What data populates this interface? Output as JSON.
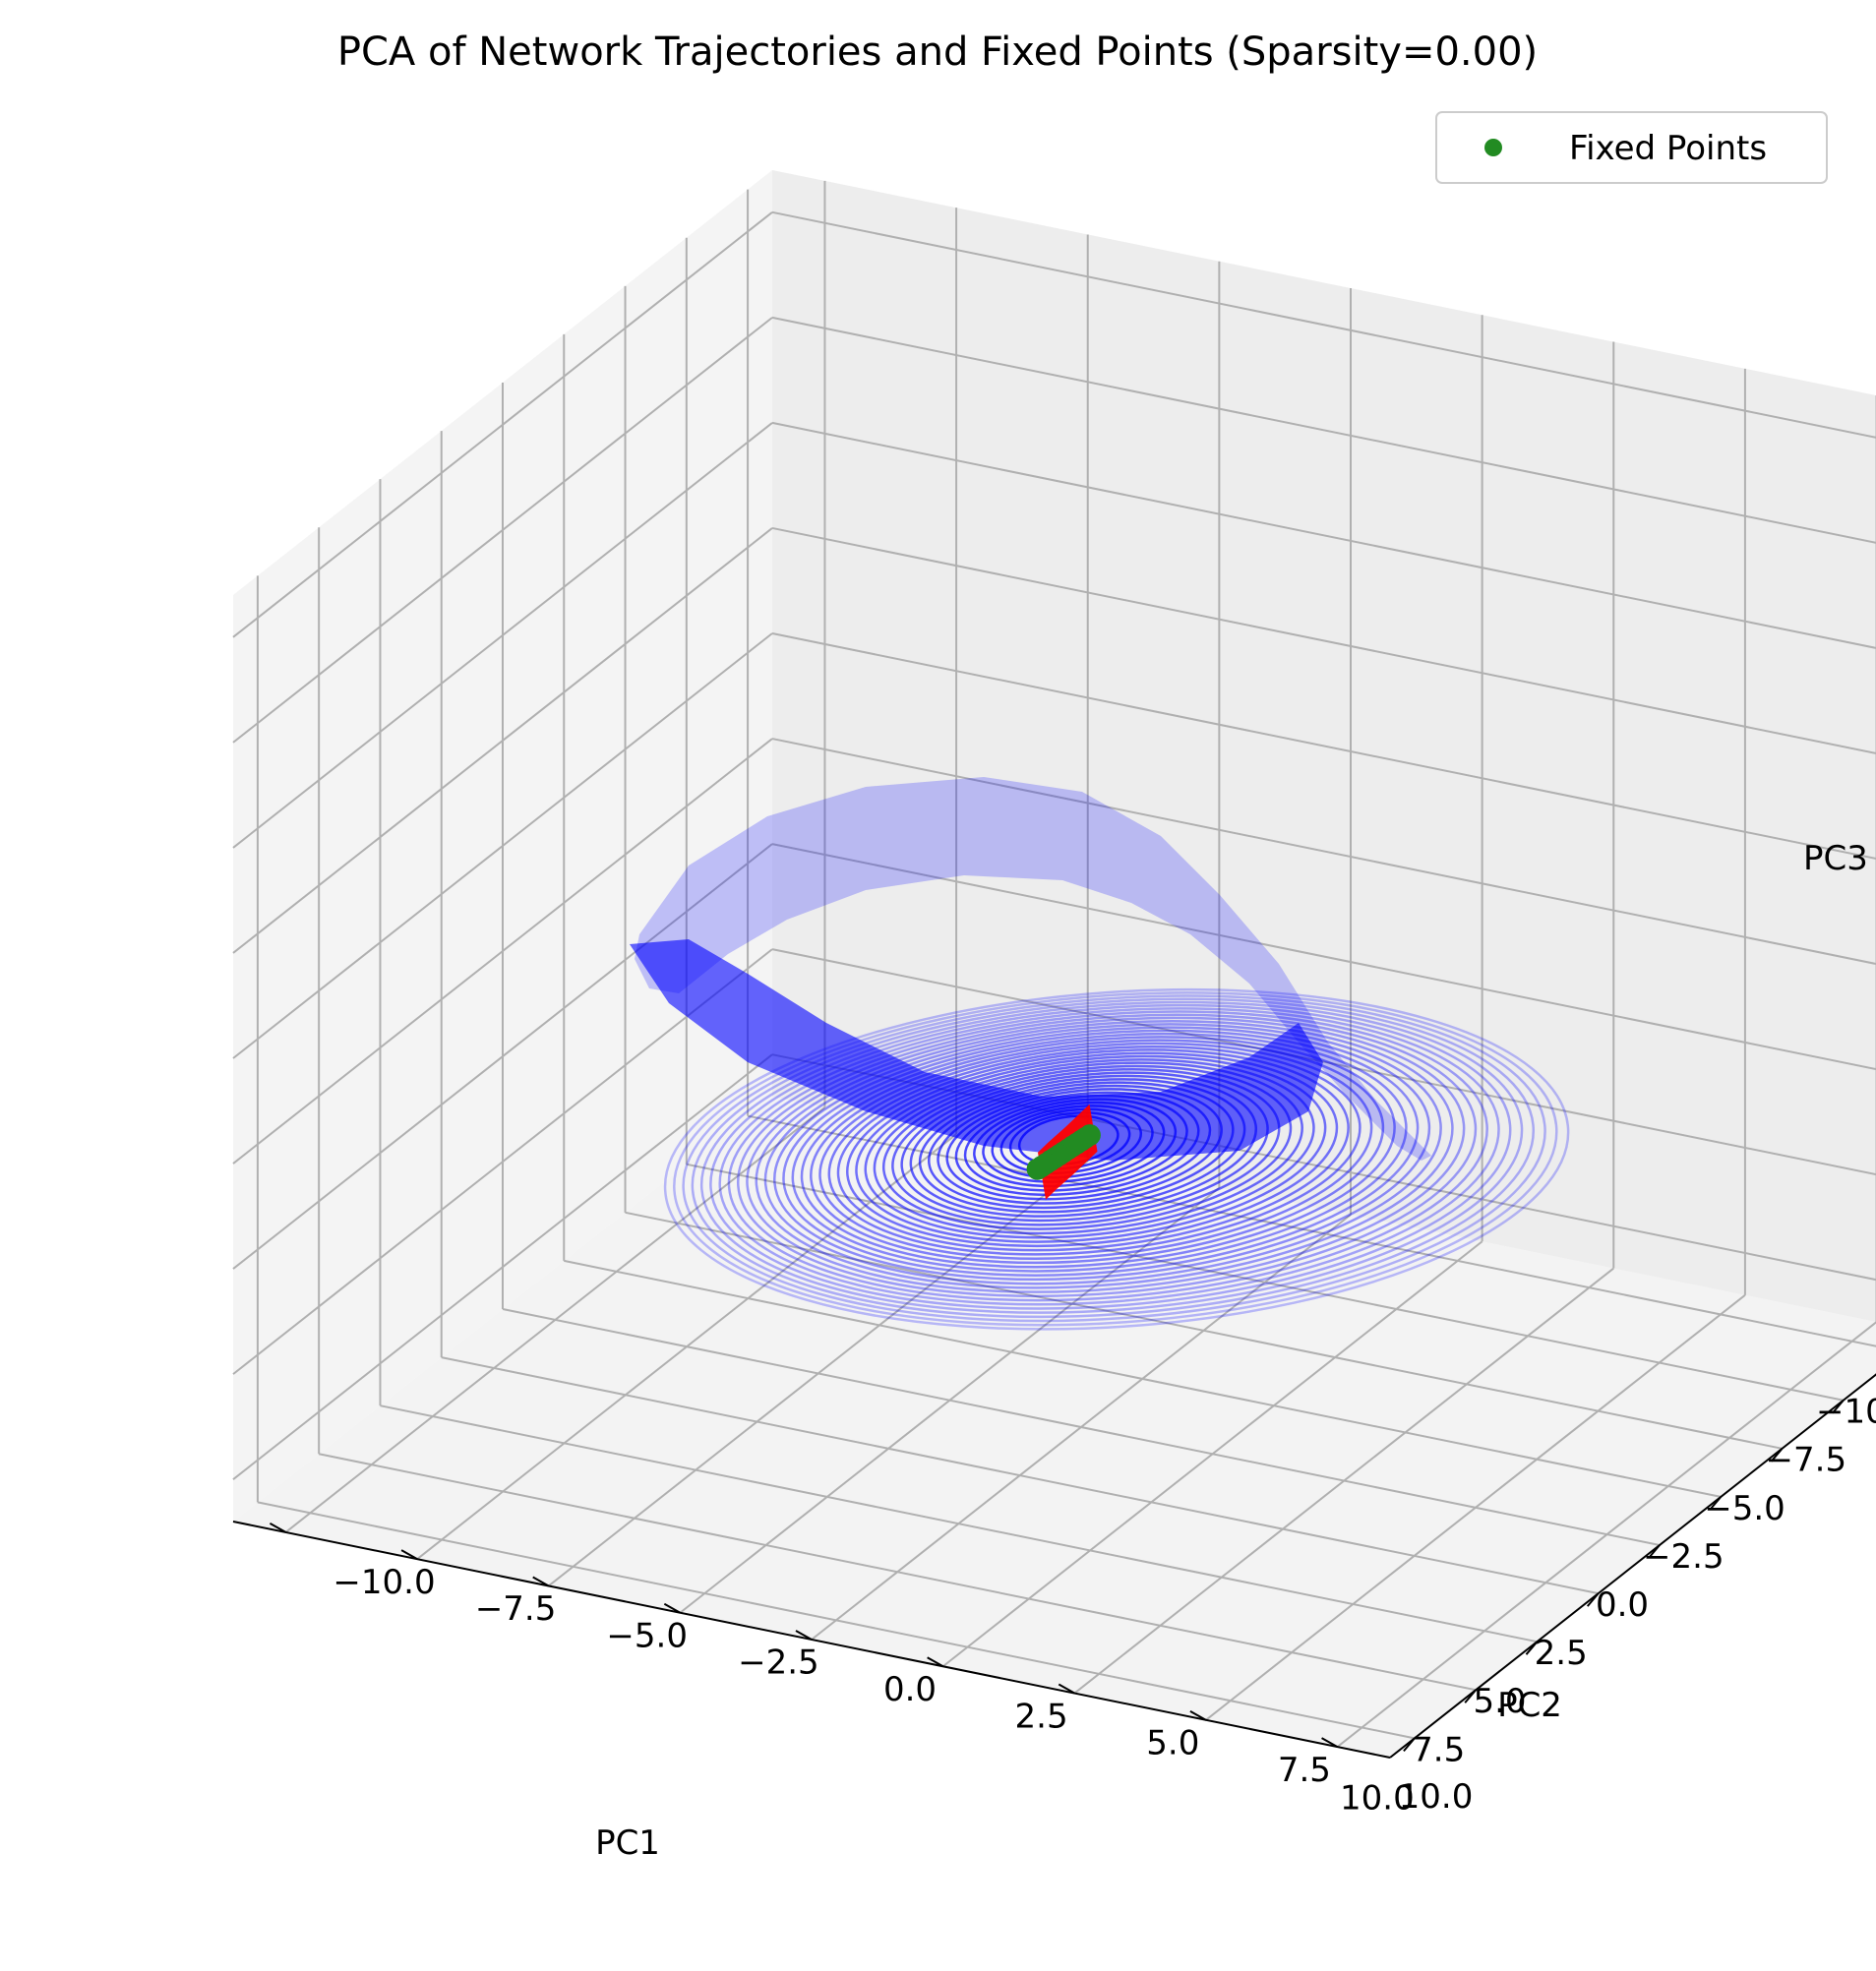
{
  "chart_data": {
    "type": "scatter3d",
    "title": "PCA of Network Trajectories and Fixed Points (Sparsity=0.00)",
    "xlabel": "PC1",
    "ylabel": "PC2",
    "zlabel": "PC3",
    "xlim": [
      -11,
      11
    ],
    "ylim": [
      -11,
      11
    ],
    "zlim": [
      -11,
      11
    ],
    "ticks": [
      -10,
      -7.5,
      -5,
      -2.5,
      0,
      2.5,
      5,
      7.5,
      10
    ],
    "tick_labels": [
      "−10.0",
      "−7.5",
      "−5.0",
      "−2.5",
      "0.0",
      "2.5",
      "5.0",
      "7.5",
      "10.0"
    ],
    "grid": true,
    "legend": {
      "placement": "top-right",
      "entries": [
        {
          "label": "Fixed Points",
          "color": "#228b22"
        }
      ]
    },
    "series": [
      {
        "name": "Fixed Points",
        "kind": "scatter",
        "color": "#228b22",
        "points": [
          [
            -1.0,
            -0.3,
            -4.6
          ],
          [
            -0.5,
            -0.15,
            -4.4
          ],
          [
            0.0,
            0.0,
            -4.2
          ],
          [
            0.5,
            0.15,
            -4.0
          ],
          [
            1.0,
            0.3,
            -3.8
          ],
          [
            1.5,
            0.45,
            -3.6
          ],
          [
            2.0,
            0.6,
            -3.4
          ],
          [
            2.5,
            0.75,
            -3.2
          ],
          [
            3.0,
            0.9,
            -3.0
          ],
          [
            3.5,
            1.05,
            -2.8
          ],
          [
            4.0,
            1.2,
            -2.6
          ],
          [
            4.5,
            1.35,
            -2.4
          ],
          [
            5.0,
            1.5,
            -2.2
          ]
        ]
      },
      {
        "name": "",
        "kind": "trajectory-band",
        "color": "#ff0000",
        "spine": [
          [
            -1.2,
            -0.4,
            -4.5
          ],
          [
            1.5,
            0.4,
            -3.6
          ],
          [
            3.5,
            1.0,
            -2.9
          ],
          [
            5.2,
            1.6,
            -2.2
          ]
        ]
      },
      {
        "name": "",
        "kind": "trajectories",
        "color": "#0000ff",
        "count": 40,
        "center": [
          1.5,
          1.0,
          -3.0
        ],
        "max_radius": 8.5
      }
    ]
  }
}
